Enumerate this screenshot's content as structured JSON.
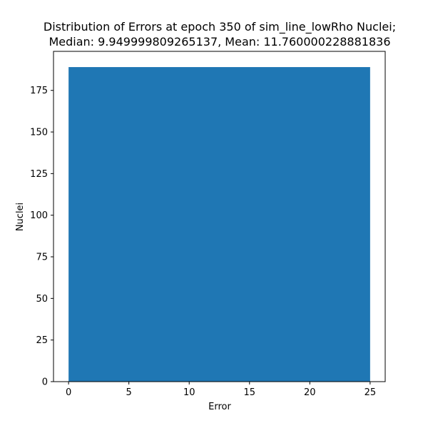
{
  "chart_data": {
    "type": "bar",
    "title_line1": "Distribution of Errors at epoch 350 of sim_line_lowRho Nuclei;",
    "title_line2": "Median: 9.949999809265137, Mean: 11.760000228881836",
    "xlabel": "Error",
    "ylabel": "Nuclei",
    "bins": [
      {
        "x0": 0,
        "x1": 25,
        "count": 189
      }
    ],
    "xlim": [
      -1.25,
      26.25
    ],
    "ylim": [
      0,
      198.45
    ],
    "xticks": [
      0,
      5,
      10,
      15,
      20,
      25
    ],
    "yticks": [
      0,
      25,
      50,
      75,
      100,
      125,
      150,
      175
    ],
    "bar_color": "#1f77b4",
    "grid": false
  }
}
